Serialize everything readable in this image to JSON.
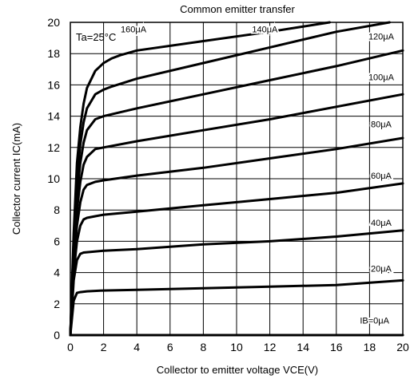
{
  "chart_data": {
    "type": "line",
    "title": "Common emitter transfer",
    "xlabel": "Collector to emitter voltage VCE(V)",
    "ylabel": "Collector current IC(mA)",
    "xlim": [
      0,
      20
    ],
    "ylim": [
      0,
      20
    ],
    "x_ticks": [
      "0",
      "2",
      "4",
      "6",
      "8",
      "10",
      "12",
      "14",
      "16",
      "18",
      "20"
    ],
    "y_ticks": [
      "0",
      "2",
      "4",
      "6",
      "8",
      "10",
      "12",
      "14",
      "16",
      "18",
      "20"
    ],
    "grid": true,
    "annotation": "Ta=25°C",
    "series": [
      {
        "name": "IB=0μA",
        "x": [
          0,
          20
        ],
        "y": [
          0,
          0
        ]
      },
      {
        "name": "20μA",
        "x": [
          0,
          0.2,
          0.4,
          0.6,
          1,
          2,
          4,
          8,
          12,
          16,
          20
        ],
        "y": [
          0,
          2.2,
          2.7,
          2.75,
          2.8,
          2.85,
          2.9,
          3.0,
          3.1,
          3.2,
          3.5
        ]
      },
      {
        "name": "40μA",
        "x": [
          0,
          0.2,
          0.4,
          0.6,
          0.8,
          1,
          2,
          4,
          8,
          12,
          16,
          20
        ],
        "y": [
          0,
          3.5,
          4.8,
          5.2,
          5.28,
          5.3,
          5.4,
          5.5,
          5.8,
          6.0,
          6.3,
          6.7
        ]
      },
      {
        "name": "60μA",
        "x": [
          0,
          0.2,
          0.4,
          0.6,
          0.8,
          1,
          1.5,
          2,
          4,
          8,
          12,
          16,
          20
        ],
        "y": [
          0,
          4.0,
          6.0,
          7.0,
          7.4,
          7.5,
          7.6,
          7.7,
          7.9,
          8.3,
          8.7,
          9.1,
          9.7
        ]
      },
      {
        "name": "80μA",
        "x": [
          0,
          0.2,
          0.4,
          0.6,
          0.8,
          1,
          1.5,
          2,
          4,
          8,
          12,
          16,
          20
        ],
        "y": [
          0,
          4.5,
          7.0,
          8.5,
          9.3,
          9.6,
          9.8,
          9.9,
          10.2,
          10.7,
          11.3,
          11.9,
          12.6
        ]
      },
      {
        "name": "100μA",
        "x": [
          0,
          0.2,
          0.4,
          0.6,
          0.8,
          1,
          1.5,
          2,
          4,
          8,
          12,
          16,
          20
        ],
        "y": [
          0,
          5.0,
          8.0,
          9.8,
          10.9,
          11.4,
          11.9,
          12.0,
          12.4,
          13.1,
          13.8,
          14.6,
          15.4
        ]
      },
      {
        "name": "120μA",
        "x": [
          0,
          0.2,
          0.4,
          0.6,
          0.8,
          1,
          1.5,
          2,
          4,
          8,
          12,
          16,
          20
        ],
        "y": [
          0,
          5.5,
          9.0,
          11.0,
          12.3,
          13.1,
          13.8,
          14.0,
          14.5,
          15.4,
          16.3,
          17.2,
          18.2
        ]
      },
      {
        "name": "140μA",
        "x": [
          0,
          0.2,
          0.4,
          0.6,
          0.8,
          1,
          1.5,
          2,
          2.5,
          4,
          8,
          12,
          16,
          19.2
        ],
        "y": [
          0,
          6.0,
          10.0,
          12.2,
          13.6,
          14.5,
          15.4,
          15.7,
          15.9,
          16.4,
          17.4,
          18.4,
          19.4,
          20.0
        ]
      },
      {
        "name": "160μA",
        "x": [
          0,
          0.2,
          0.4,
          0.6,
          0.8,
          1,
          1.5,
          2,
          2.5,
          3,
          4,
          8,
          12,
          15.6
        ],
        "y": [
          0,
          6.5,
          11.0,
          13.3,
          14.8,
          15.8,
          16.9,
          17.4,
          17.7,
          17.9,
          18.2,
          18.8,
          19.4,
          20.0
        ]
      }
    ],
    "labels": [
      {
        "text": "160μA",
        "x": 3.8,
        "y": 19.35
      },
      {
        "text": "140μA",
        "x": 11.7,
        "y": 19.35
      },
      {
        "text": "120μA",
        "x": 18.7,
        "y": 18.9
      },
      {
        "text": "100μA",
        "x": 18.7,
        "y": 16.3
      },
      {
        "text": "80μA",
        "x": 18.7,
        "y": 13.3
      },
      {
        "text": "60μA",
        "x": 18.7,
        "y": 10.0
      },
      {
        "text": "40μA",
        "x": 18.7,
        "y": 7.0
      },
      {
        "text": "20μA",
        "x": 18.7,
        "y": 4.05
      },
      {
        "text": "IB=0μA",
        "x": 18.3,
        "y": 0.75
      }
    ]
  }
}
